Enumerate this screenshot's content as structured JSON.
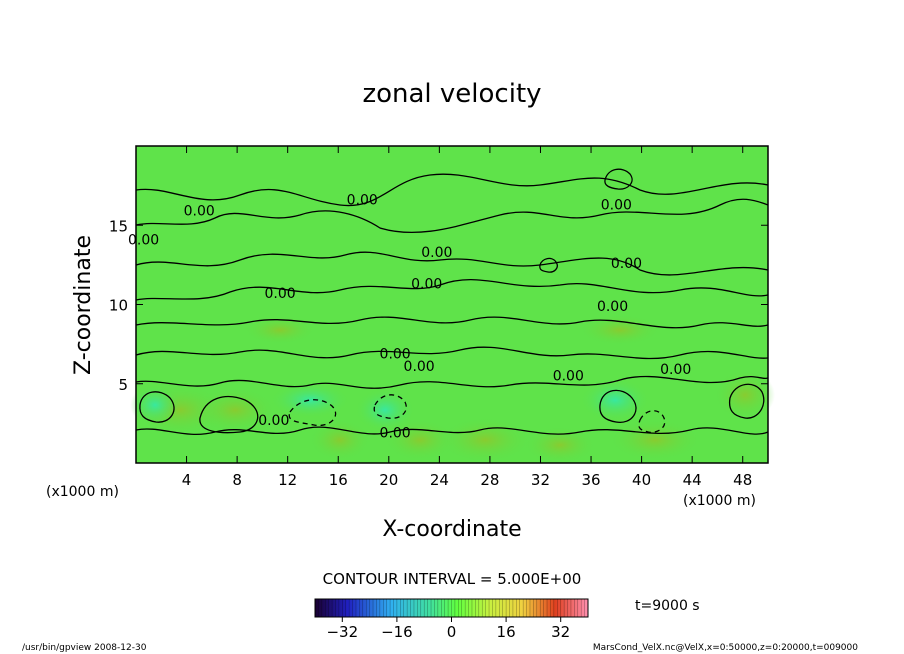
{
  "chart_data": {
    "type": "heatmap",
    "title": "zonal velocity",
    "xlabel": "X-coordinate",
    "ylabel": "Z-coordinate",
    "x_unit_left": "(x1000 m)",
    "x_unit_right": "(x1000 m)",
    "xlim": [
      0,
      50
    ],
    "ylim": [
      0,
      20
    ],
    "x_ticks": [
      4,
      8,
      12,
      16,
      20,
      24,
      28,
      32,
      36,
      40,
      44,
      48
    ],
    "y_ticks": [
      5,
      10,
      15
    ],
    "contour_interval_text": "CONTOUR INTERVAL = 5.000E+00",
    "time_text": "t=9000 s",
    "colorbar_ticks": [
      -32,
      -16,
      0,
      16,
      32
    ],
    "colorbar_range": [
      -40,
      40
    ],
    "contour_labels": [
      {
        "text": "0.00",
        "x": 5.0,
        "z": 15.6
      },
      {
        "text": "0.00",
        "x": 17.9,
        "z": 16.3
      },
      {
        "text": "0.00",
        "x": 38.0,
        "z": 16.0
      },
      {
        "text": "0.00",
        "x": 0.6,
        "z": 13.8
      },
      {
        "text": "0.00",
        "x": 23.8,
        "z": 13.0
      },
      {
        "text": "0.00",
        "x": 38.8,
        "z": 12.3
      },
      {
        "text": "0.00",
        "x": 11.4,
        "z": 10.4
      },
      {
        "text": "0.00",
        "x": 23.0,
        "z": 11.0
      },
      {
        "text": "0.00",
        "x": 37.7,
        "z": 9.6
      },
      {
        "text": "0.00",
        "x": 20.5,
        "z": 6.6
      },
      {
        "text": "0.00",
        "x": 22.4,
        "z": 5.8
      },
      {
        "text": "0.00",
        "x": 34.2,
        "z": 5.2
      },
      {
        "text": "0.00",
        "x": 42.7,
        "z": 5.6
      },
      {
        "text": "0.00",
        "x": 10.9,
        "z": 2.4
      },
      {
        "text": "0.00",
        "x": 20.5,
        "z": 1.6
      }
    ]
  },
  "footer": {
    "left": "/usr/bin/gpview   2008-12-30",
    "right": "MarsCond_VelX.nc@VelX,x=0:50000,z=0:20000,t=009000"
  }
}
